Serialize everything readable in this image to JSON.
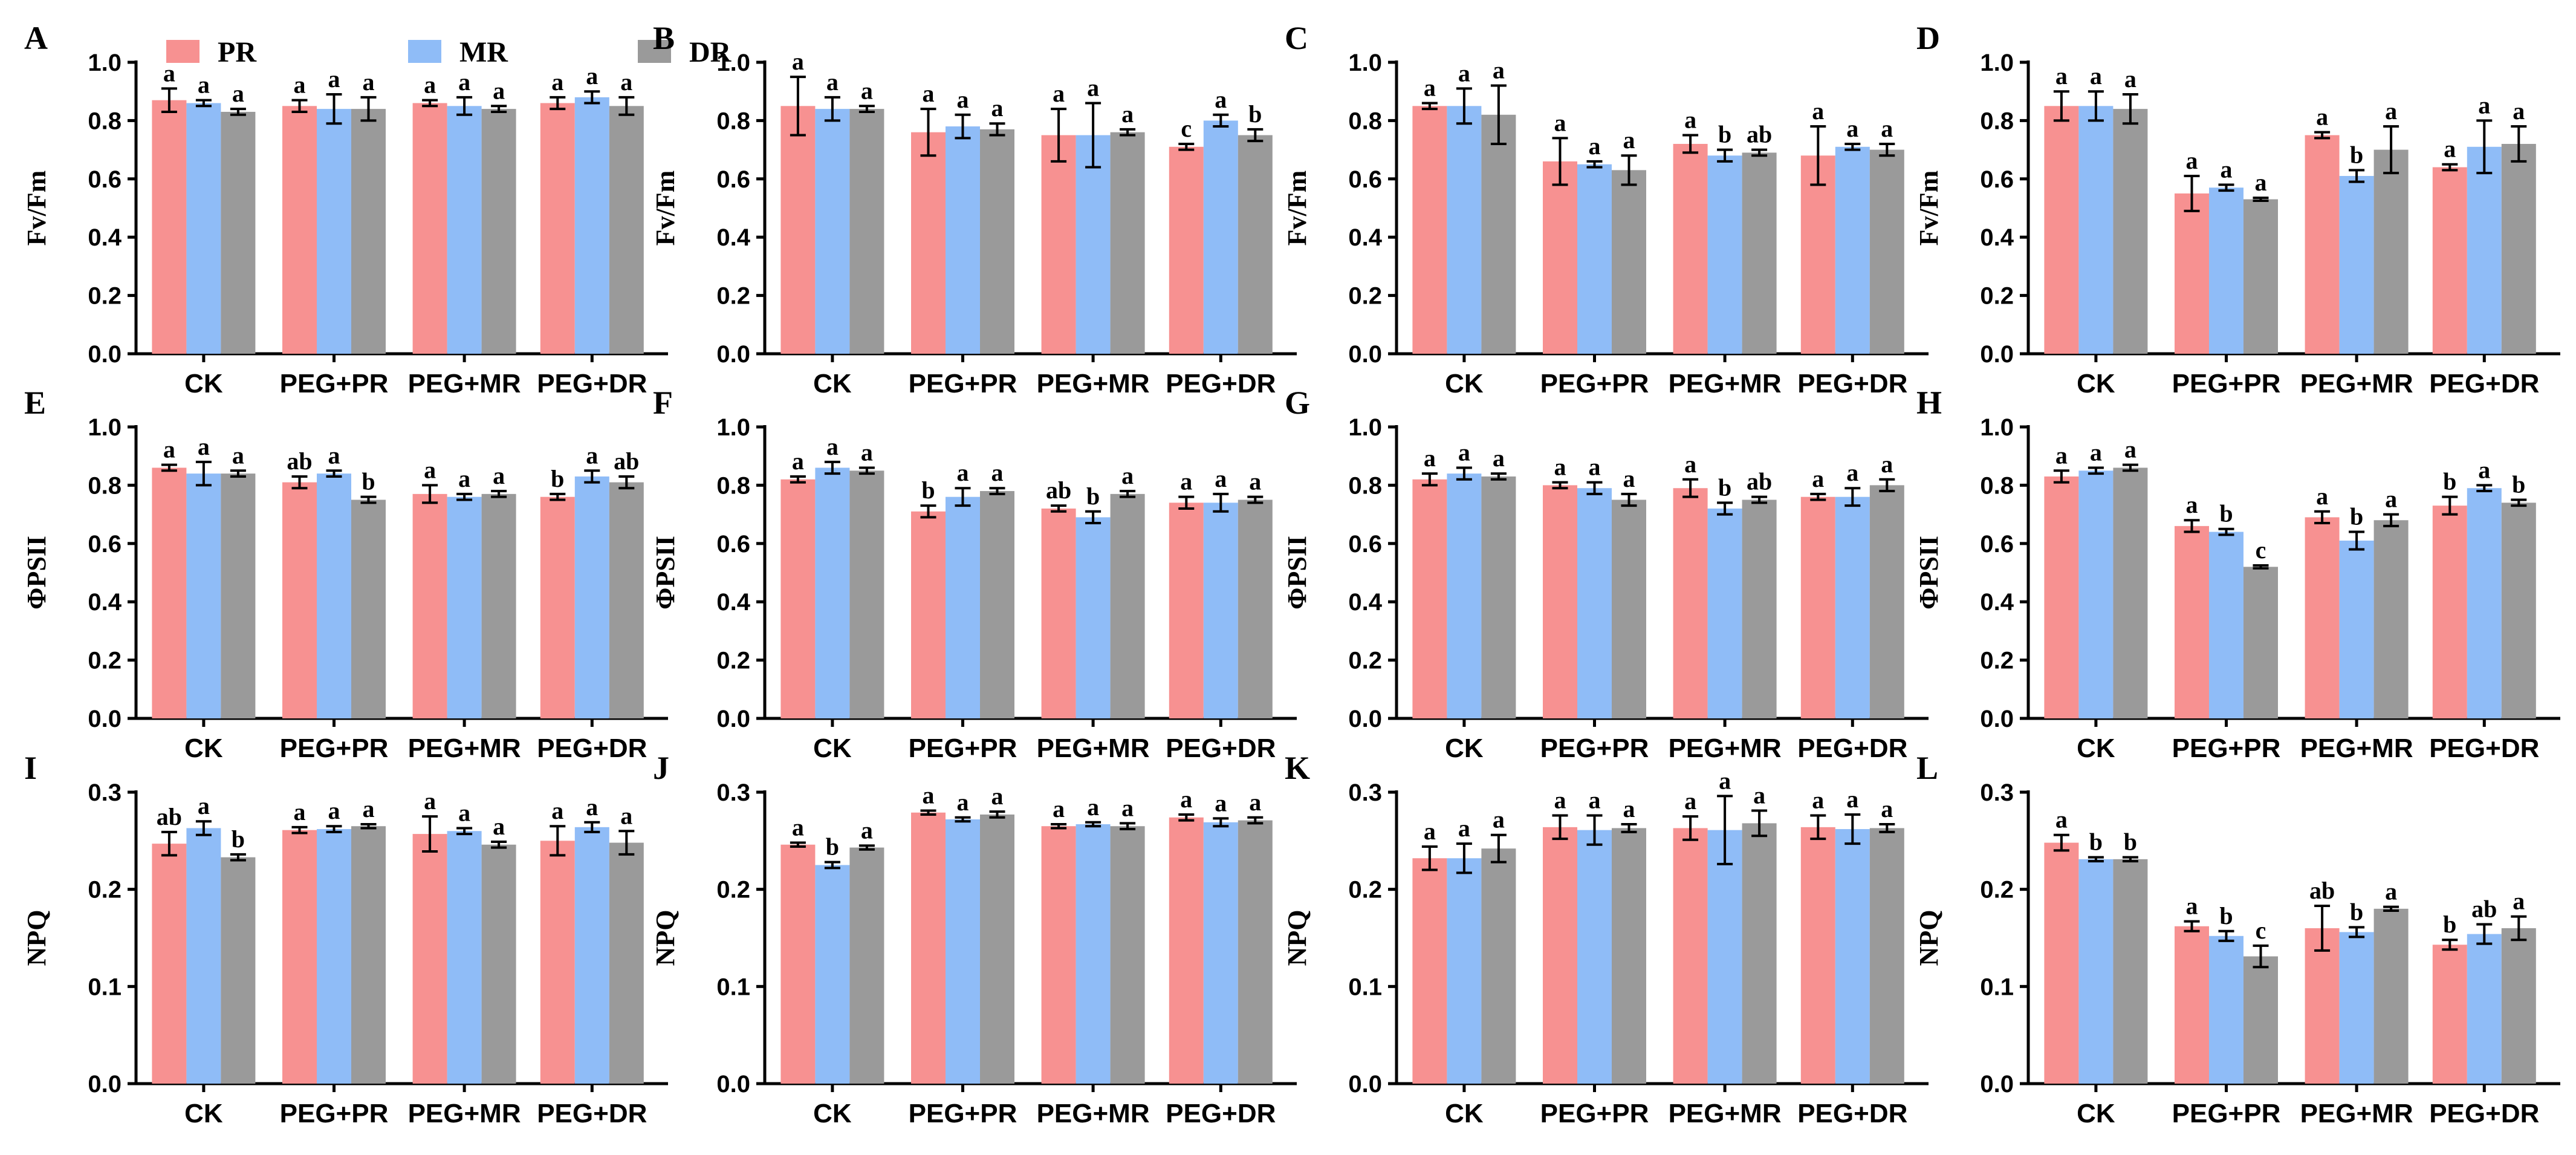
{
  "legend": {
    "series": [
      {
        "name": "PR",
        "color": "#f79191"
      },
      {
        "name": "MR",
        "color": "#8fbcf7"
      },
      {
        "name": "DR",
        "color": "#9a9a9a"
      }
    ]
  },
  "chart_data": [
    {
      "type": "bar",
      "panel": "A",
      "ylabel": "Fv/Fm",
      "ylim": [
        0,
        1.0
      ],
      "yticks": [
        "0.0",
        "0.2",
        "0.4",
        "0.6",
        "0.8",
        "1.0"
      ],
      "categories": [
        "CK",
        "PEG+PR",
        "PEG+MR",
        "PEG+DR"
      ],
      "series": [
        {
          "name": "PR",
          "values": [
            0.87,
            0.85,
            0.86,
            0.86
          ],
          "errors": [
            0.04,
            0.02,
            0.01,
            0.02
          ],
          "letters": [
            "a",
            "a",
            "a",
            "a"
          ]
        },
        {
          "name": "MR",
          "values": [
            0.86,
            0.84,
            0.85,
            0.88
          ],
          "errors": [
            0.01,
            0.05,
            0.03,
            0.02
          ],
          "letters": [
            "a",
            "a",
            "a",
            "a"
          ]
        },
        {
          "name": "DR",
          "values": [
            0.83,
            0.84,
            0.84,
            0.85
          ],
          "errors": [
            0.01,
            0.04,
            0.01,
            0.03
          ],
          "letters": [
            "a",
            "a",
            "a",
            "a"
          ]
        }
      ]
    },
    {
      "type": "bar",
      "panel": "B",
      "ylabel": "Fv/Fm",
      "ylim": [
        0,
        1.0
      ],
      "yticks": [
        "0.0",
        "0.2",
        "0.4",
        "0.6",
        "0.8",
        "1.0"
      ],
      "categories": [
        "CK",
        "PEG+PR",
        "PEG+MR",
        "PEG+DR"
      ],
      "series": [
        {
          "name": "PR",
          "values": [
            0.85,
            0.76,
            0.75,
            0.71
          ],
          "errors": [
            0.1,
            0.08,
            0.09,
            0.01
          ],
          "letters": [
            "a",
            "a",
            "a",
            "c"
          ]
        },
        {
          "name": "MR",
          "values": [
            0.84,
            0.78,
            0.75,
            0.8
          ],
          "errors": [
            0.04,
            0.04,
            0.11,
            0.02
          ],
          "letters": [
            "a",
            "a",
            "a",
            "a"
          ]
        },
        {
          "name": "DR",
          "values": [
            0.84,
            0.77,
            0.76,
            0.75
          ],
          "errors": [
            0.01,
            0.02,
            0.01,
            0.02
          ],
          "letters": [
            "a",
            "a",
            "a",
            "b"
          ]
        }
      ]
    },
    {
      "type": "bar",
      "panel": "C",
      "ylabel": "Fv/Fm",
      "ylim": [
        0,
        1.0
      ],
      "yticks": [
        "0.0",
        "0.2",
        "0.4",
        "0.6",
        "0.8",
        "1.0"
      ],
      "categories": [
        "CK",
        "PEG+PR",
        "PEG+MR",
        "PEG+DR"
      ],
      "series": [
        {
          "name": "PR",
          "values": [
            0.85,
            0.66,
            0.72,
            0.68
          ],
          "errors": [
            0.01,
            0.08,
            0.03,
            0.1
          ],
          "letters": [
            "a",
            "a",
            "a",
            "a"
          ]
        },
        {
          "name": "MR",
          "values": [
            0.85,
            0.65,
            0.68,
            0.71
          ],
          "errors": [
            0.06,
            0.01,
            0.02,
            0.01
          ],
          "letters": [
            "a",
            "a",
            "b",
            "a"
          ]
        },
        {
          "name": "DR",
          "values": [
            0.82,
            0.63,
            0.69,
            0.7
          ],
          "errors": [
            0.1,
            0.05,
            0.01,
            0.02
          ],
          "letters": [
            "a",
            "a",
            "ab",
            "a"
          ]
        }
      ]
    },
    {
      "type": "bar",
      "panel": "D",
      "ylabel": "Fv/Fm",
      "ylim": [
        0,
        1.0
      ],
      "yticks": [
        "0.0",
        "0.2",
        "0.4",
        "0.6",
        "0.8",
        "1.0"
      ],
      "categories": [
        "CK",
        "PEG+PR",
        "PEG+MR",
        "PEG+DR"
      ],
      "series": [
        {
          "name": "PR",
          "values": [
            0.85,
            0.55,
            0.75,
            0.64
          ],
          "errors": [
            0.05,
            0.06,
            0.01,
            0.01
          ],
          "letters": [
            "a",
            "a",
            "a",
            "a"
          ]
        },
        {
          "name": "MR",
          "values": [
            0.85,
            0.57,
            0.61,
            0.71
          ],
          "errors": [
            0.05,
            0.01,
            0.02,
            0.09
          ],
          "letters": [
            "a",
            "a",
            "b",
            "a"
          ]
        },
        {
          "name": "DR",
          "values": [
            0.84,
            0.53,
            0.7,
            0.72
          ],
          "errors": [
            0.05,
            0.005,
            0.08,
            0.06
          ],
          "letters": [
            "a",
            "a",
            "a",
            "a"
          ]
        }
      ]
    },
    {
      "type": "bar",
      "panel": "E",
      "ylabel": "ΦPSII",
      "ylim": [
        0,
        1.0
      ],
      "yticks": [
        "0.0",
        "0.2",
        "0.4",
        "0.6",
        "0.8",
        "1.0"
      ],
      "categories": [
        "CK",
        "PEG+PR",
        "PEG+MR",
        "PEG+DR"
      ],
      "series": [
        {
          "name": "PR",
          "values": [
            0.86,
            0.81,
            0.77,
            0.76
          ],
          "errors": [
            0.01,
            0.02,
            0.03,
            0.01
          ],
          "letters": [
            "a",
            "ab",
            "a",
            "b"
          ]
        },
        {
          "name": "MR",
          "values": [
            0.84,
            0.84,
            0.76,
            0.83
          ],
          "errors": [
            0.04,
            0.01,
            0.01,
            0.02
          ],
          "letters": [
            "a",
            "a",
            "a",
            "a"
          ]
        },
        {
          "name": "DR",
          "values": [
            0.84,
            0.75,
            0.77,
            0.81
          ],
          "errors": [
            0.01,
            0.01,
            0.01,
            0.02
          ],
          "letters": [
            "a",
            "b",
            "a",
            "ab"
          ]
        }
      ]
    },
    {
      "type": "bar",
      "panel": "F",
      "ylabel": "ΦPSII",
      "ylim": [
        0,
        1.0
      ],
      "yticks": [
        "0.0",
        "0.2",
        "0.4",
        "0.6",
        "0.8",
        "1.0"
      ],
      "categories": [
        "CK",
        "PEG+PR",
        "PEG+MR",
        "PEG+DR"
      ],
      "series": [
        {
          "name": "PR",
          "values": [
            0.82,
            0.71,
            0.72,
            0.74
          ],
          "errors": [
            0.01,
            0.02,
            0.01,
            0.02
          ],
          "letters": [
            "a",
            "b",
            "ab",
            "a"
          ]
        },
        {
          "name": "MR",
          "values": [
            0.86,
            0.76,
            0.69,
            0.74
          ],
          "errors": [
            0.02,
            0.03,
            0.02,
            0.03
          ],
          "letters": [
            "a",
            "a",
            "b",
            "a"
          ]
        },
        {
          "name": "DR",
          "values": [
            0.85,
            0.78,
            0.77,
            0.75
          ],
          "errors": [
            0.01,
            0.01,
            0.01,
            0.01
          ],
          "letters": [
            "a",
            "a",
            "a",
            "a"
          ]
        }
      ]
    },
    {
      "type": "bar",
      "panel": "G",
      "ylabel": "ΦPSII",
      "ylim": [
        0,
        1.0
      ],
      "yticks": [
        "0.0",
        "0.2",
        "0.4",
        "0.6",
        "0.8",
        "1.0"
      ],
      "categories": [
        "CK",
        "PEG+PR",
        "PEG+MR",
        "PEG+DR"
      ],
      "series": [
        {
          "name": "PR",
          "values": [
            0.82,
            0.8,
            0.79,
            0.76
          ],
          "errors": [
            0.02,
            0.01,
            0.03,
            0.01
          ],
          "letters": [
            "a",
            "a",
            "a",
            "a"
          ]
        },
        {
          "name": "MR",
          "values": [
            0.84,
            0.79,
            0.72,
            0.76
          ],
          "errors": [
            0.02,
            0.02,
            0.02,
            0.03
          ],
          "letters": [
            "a",
            "a",
            "b",
            "a"
          ]
        },
        {
          "name": "DR",
          "values": [
            0.83,
            0.75,
            0.75,
            0.8
          ],
          "errors": [
            0.01,
            0.02,
            0.01,
            0.02
          ],
          "letters": [
            "a",
            "a",
            "ab",
            "a"
          ]
        }
      ]
    },
    {
      "type": "bar",
      "panel": "H",
      "ylabel": "ΦPSII",
      "ylim": [
        0,
        1.0
      ],
      "yticks": [
        "0.0",
        "0.2",
        "0.4",
        "0.6",
        "0.8",
        "1.0"
      ],
      "categories": [
        "CK",
        "PEG+PR",
        "PEG+MR",
        "PEG+DR"
      ],
      "series": [
        {
          "name": "PR",
          "values": [
            0.83,
            0.66,
            0.69,
            0.73
          ],
          "errors": [
            0.02,
            0.02,
            0.02,
            0.03
          ],
          "letters": [
            "a",
            "a",
            "a",
            "b"
          ]
        },
        {
          "name": "MR",
          "values": [
            0.85,
            0.64,
            0.61,
            0.79
          ],
          "errors": [
            0.01,
            0.01,
            0.03,
            0.01
          ],
          "letters": [
            "a",
            "b",
            "b",
            "a"
          ]
        },
        {
          "name": "DR",
          "values": [
            0.86,
            0.52,
            0.68,
            0.74
          ],
          "errors": [
            0.01,
            0.005,
            0.02,
            0.01
          ],
          "letters": [
            "a",
            "c",
            "a",
            "b"
          ]
        }
      ]
    },
    {
      "type": "bar",
      "panel": "I",
      "ylabel": "NPQ",
      "ylim": [
        0,
        0.3
      ],
      "yticks": [
        "0.0",
        "0.1",
        "0.2",
        "0.3"
      ],
      "categories": [
        "CK",
        "PEG+PR",
        "PEG+MR",
        "PEG+DR"
      ],
      "series": [
        {
          "name": "PR",
          "values": [
            0.247,
            0.261,
            0.257,
            0.25
          ],
          "errors": [
            0.012,
            0.003,
            0.018,
            0.015
          ],
          "letters": [
            "ab",
            "a",
            "a",
            "a"
          ]
        },
        {
          "name": "MR",
          "values": [
            0.263,
            0.262,
            0.26,
            0.264
          ],
          "errors": [
            0.007,
            0.003,
            0.003,
            0.005
          ],
          "letters": [
            "a",
            "a",
            "a",
            "a"
          ]
        },
        {
          "name": "DR",
          "values": [
            0.233,
            0.265,
            0.246,
            0.248
          ],
          "errors": [
            0.003,
            0.002,
            0.003,
            0.012
          ],
          "letters": [
            "b",
            "a",
            "a",
            "a"
          ]
        }
      ]
    },
    {
      "type": "bar",
      "panel": "J",
      "ylabel": "NPQ",
      "ylim": [
        0,
        0.3
      ],
      "yticks": [
        "0.0",
        "0.1",
        "0.2",
        "0.3"
      ],
      "categories": [
        "CK",
        "PEG+PR",
        "PEG+MR",
        "PEG+DR"
      ],
      "series": [
        {
          "name": "PR",
          "values": [
            0.246,
            0.279,
            0.265,
            0.274
          ],
          "errors": [
            0.002,
            0.002,
            0.002,
            0.003
          ],
          "letters": [
            "a",
            "a",
            "a",
            "a"
          ]
        },
        {
          "name": "MR",
          "values": [
            0.225,
            0.272,
            0.267,
            0.269
          ],
          "errors": [
            0.003,
            0.002,
            0.002,
            0.004
          ],
          "letters": [
            "b",
            "a",
            "a",
            "a"
          ]
        },
        {
          "name": "DR",
          "values": [
            0.243,
            0.277,
            0.265,
            0.271
          ],
          "errors": [
            0.002,
            0.003,
            0.003,
            0.003
          ],
          "letters": [
            "a",
            "a",
            "a",
            "a"
          ]
        }
      ]
    },
    {
      "type": "bar",
      "panel": "K",
      "ylabel": "NPQ",
      "ylim": [
        0,
        0.3
      ],
      "yticks": [
        "0.0",
        "0.1",
        "0.2",
        "0.3"
      ],
      "categories": [
        "CK",
        "PEG+PR",
        "PEG+MR",
        "PEG+DR"
      ],
      "series": [
        {
          "name": "PR",
          "values": [
            0.232,
            0.264,
            0.263,
            0.264
          ],
          "errors": [
            0.012,
            0.012,
            0.012,
            0.012
          ],
          "letters": [
            "a",
            "a",
            "a",
            "a"
          ]
        },
        {
          "name": "MR",
          "values": [
            0.232,
            0.261,
            0.261,
            0.262
          ],
          "errors": [
            0.015,
            0.015,
            0.035,
            0.015
          ],
          "letters": [
            "a",
            "a",
            "a",
            "a"
          ]
        },
        {
          "name": "DR",
          "values": [
            0.242,
            0.263,
            0.268,
            0.263
          ],
          "errors": [
            0.014,
            0.004,
            0.013,
            0.004
          ],
          "letters": [
            "a",
            "a",
            "a",
            "a"
          ]
        }
      ]
    },
    {
      "type": "bar",
      "panel": "L",
      "ylabel": "NPQ",
      "ylim": [
        0,
        0.3
      ],
      "yticks": [
        "0.0",
        "0.1",
        "0.2",
        "0.3"
      ],
      "categories": [
        "CK",
        "PEG+PR",
        "PEG+MR",
        "PEG+DR"
      ],
      "series": [
        {
          "name": "PR",
          "values": [
            0.248,
            0.162,
            0.16,
            0.143
          ],
          "errors": [
            0.008,
            0.005,
            0.023,
            0.005
          ],
          "letters": [
            "a",
            "a",
            "ab",
            "b"
          ]
        },
        {
          "name": "MR",
          "values": [
            0.231,
            0.152,
            0.156,
            0.154
          ],
          "errors": [
            0.002,
            0.005,
            0.005,
            0.01
          ],
          "letters": [
            "b",
            "b",
            "b",
            "ab"
          ]
        },
        {
          "name": "DR",
          "values": [
            0.231,
            0.131,
            0.18,
            0.16
          ],
          "errors": [
            0.002,
            0.011,
            0.002,
            0.012
          ],
          "letters": [
            "b",
            "c",
            "a",
            "a"
          ]
        }
      ]
    }
  ]
}
